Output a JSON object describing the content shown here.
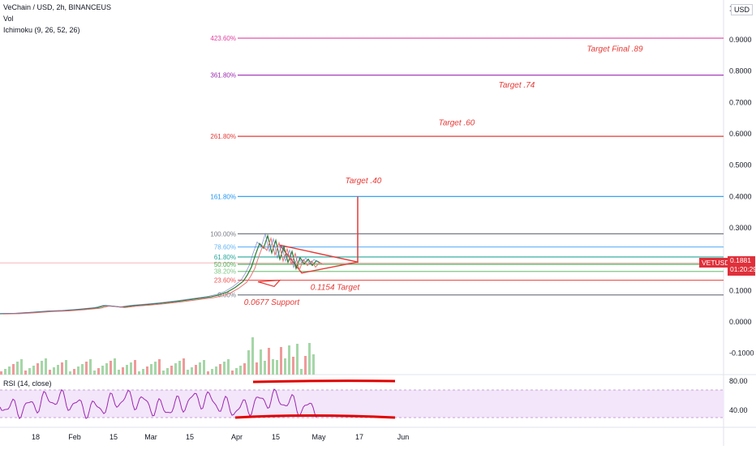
{
  "header": {
    "title": "VeChain / USD, 2h, BINANCEUS",
    "volume_label": "Vol",
    "ichimoku_label": "Ichimoku (9, 26, 52, 26)",
    "currency": "USD"
  },
  "rsi": {
    "label": "RSI (14, close)",
    "ticks": [
      "80.00",
      "40.00"
    ]
  },
  "price_tag": {
    "symbol": "VETUSD",
    "price": "0.1881",
    "countdown": "01:20:29"
  },
  "colors": {
    "fib_423": "#e040a0",
    "fib_361": "#9c27b0",
    "fib_261": "#e53935",
    "fib_161": "#2196f3",
    "fib_100": "#787b86",
    "fib_78": "#64b5f6",
    "fib_61": "#26a69a",
    "fib_50": "#4caf50",
    "fib_38": "#81c784",
    "fib_23": "#ef5350",
    "fib_0": "#787b86",
    "annotation": "#e53935",
    "price": "#e0303a",
    "rsi_band": "#f3e5fa",
    "rsi_line": "#9c27b0"
  },
  "chart_data": {
    "type": "line",
    "title": "VeChain / USD, 2h, BINANCEUS",
    "x_ticks": [
      "18",
      "Feb",
      "15",
      "Mar",
      "15",
      "Apr",
      "15",
      "May",
      "17",
      "Jun"
    ],
    "y_ticks": [
      "1.",
      "0.9000",
      "0.8000",
      "0.7000",
      "0.6000",
      "0.5000",
      "0.4000",
      "0.3000",
      "0.2000",
      "0.1000",
      "0.0000",
      "-0.1000"
    ],
    "ylim": [
      -0.12,
      1.0
    ],
    "fib_levels": [
      {
        "label": "423.60%",
        "price": 0.905,
        "color": "#e040a0"
      },
      {
        "label": "361.80%",
        "price": 0.787,
        "color": "#9c27b0"
      },
      {
        "label": "261.80%",
        "price": 0.592,
        "color": "#e53935"
      },
      {
        "label": "161.80%",
        "price": 0.4,
        "color": "#2196f3"
      },
      {
        "label": "100.00%",
        "price": 0.281,
        "color": "#787b86"
      },
      {
        "label": "78.60%",
        "price": 0.239,
        "color": "#64b5f6"
      },
      {
        "label": "61.80%",
        "price": 0.207,
        "color": "#26a69a"
      },
      {
        "label": "50.00%",
        "price": 0.184,
        "color": "#4caf50"
      },
      {
        "label": "38.20%",
        "price": 0.161,
        "color": "#81c784"
      },
      {
        "label": "23.60%",
        "price": 0.133,
        "color": "#ef5350"
      },
      {
        "label": "0.00%",
        "price": 0.086,
        "color": "#787b86"
      }
    ],
    "annotations": [
      {
        "text": "Target Final .89",
        "price": 0.87
      },
      {
        "text": "Target .74",
        "price": 0.755
      },
      {
        "text": "Target .60",
        "price": 0.635
      },
      {
        "text": "Target .40",
        "price": 0.45
      },
      {
        "text": "0.1154 Target",
        "price": 0.11
      },
      {
        "text": "0.0677 Support",
        "price": 0.062
      }
    ],
    "price_series": [
      [
        0,
        0.026
      ],
      [
        4,
        0.027
      ],
      [
        8,
        0.03
      ],
      [
        12,
        0.034
      ],
      [
        16,
        0.036
      ],
      [
        20,
        0.04
      ],
      [
        24,
        0.045
      ],
      [
        26,
        0.052
      ],
      [
        28,
        0.05
      ],
      [
        30,
        0.047
      ],
      [
        33,
        0.052
      ],
      [
        36,
        0.055
      ],
      [
        40,
        0.06
      ],
      [
        44,
        0.066
      ],
      [
        48,
        0.073
      ],
      [
        52,
        0.08
      ],
      [
        54,
        0.086
      ],
      [
        56,
        0.095
      ],
      [
        58,
        0.11
      ],
      [
        60,
        0.13
      ],
      [
        61,
        0.15
      ],
      [
        62,
        0.175
      ],
      [
        63,
        0.215
      ],
      [
        64,
        0.25
      ],
      [
        65,
        0.235
      ],
      [
        66,
        0.275
      ],
      [
        67,
        0.22
      ],
      [
        68,
        0.26
      ],
      [
        69,
        0.2
      ],
      [
        70,
        0.24
      ],
      [
        71,
        0.19
      ],
      [
        72,
        0.225
      ],
      [
        73,
        0.17
      ],
      [
        74,
        0.205
      ],
      [
        75,
        0.185
      ],
      [
        76,
        0.2
      ],
      [
        77,
        0.18
      ],
      [
        78,
        0.195
      ],
      [
        79,
        0.188
      ]
    ],
    "series": [
      {
        "name": "VETUSD"
      }
    ]
  }
}
